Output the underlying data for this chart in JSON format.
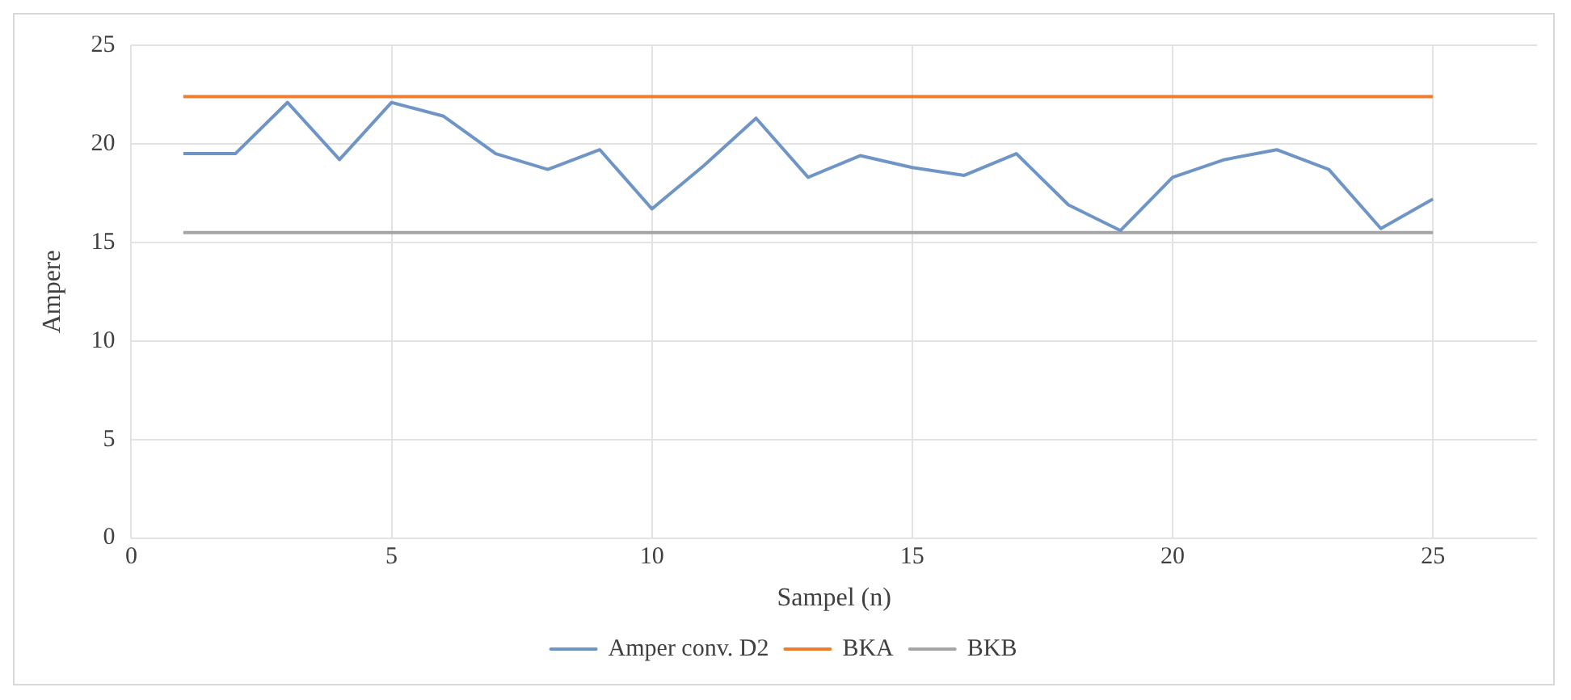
{
  "chart_data": {
    "type": "line",
    "xlabel": "Sampel (n)",
    "ylabel": "Ampere",
    "x": [
      1,
      2,
      3,
      4,
      5,
      6,
      7,
      8,
      9,
      10,
      11,
      12,
      13,
      14,
      15,
      16,
      17,
      18,
      19,
      20,
      21,
      22,
      23,
      24,
      25
    ],
    "series": [
      {
        "name": "Amper conv. D2",
        "color": "#6f95c6",
        "values": [
          19.5,
          19.5,
          22.1,
          19.2,
          22.1,
          21.4,
          19.5,
          18.7,
          19.7,
          16.7,
          18.9,
          21.3,
          18.3,
          19.4,
          18.8,
          18.4,
          19.5,
          16.9,
          15.6,
          18.3,
          19.2,
          19.7,
          18.7,
          15.7,
          17.2
        ]
      },
      {
        "name": "BKA",
        "color": "#ed7d31",
        "values": [
          22.4,
          22.4,
          22.4,
          22.4,
          22.4,
          22.4,
          22.4,
          22.4,
          22.4,
          22.4,
          22.4,
          22.4,
          22.4,
          22.4,
          22.4,
          22.4,
          22.4,
          22.4,
          22.4,
          22.4,
          22.4,
          22.4,
          22.4,
          22.4,
          22.4
        ]
      },
      {
        "name": "BKB",
        "color": "#a5a5a5",
        "values": [
          15.5,
          15.5,
          15.5,
          15.5,
          15.5,
          15.5,
          15.5,
          15.5,
          15.5,
          15.5,
          15.5,
          15.5,
          15.5,
          15.5,
          15.5,
          15.5,
          15.5,
          15.5,
          15.5,
          15.5,
          15.5,
          15.5,
          15.5,
          15.5,
          15.5
        ]
      }
    ],
    "xlim": [
      0,
      27
    ],
    "xticks": [
      0,
      5,
      10,
      15,
      20,
      25
    ],
    "ylim": [
      0,
      25
    ],
    "yticks": [
      0,
      5,
      10,
      15,
      20,
      25
    ],
    "grid": true,
    "legend": "bottom",
    "marker": "none",
    "line_style": "solid"
  }
}
